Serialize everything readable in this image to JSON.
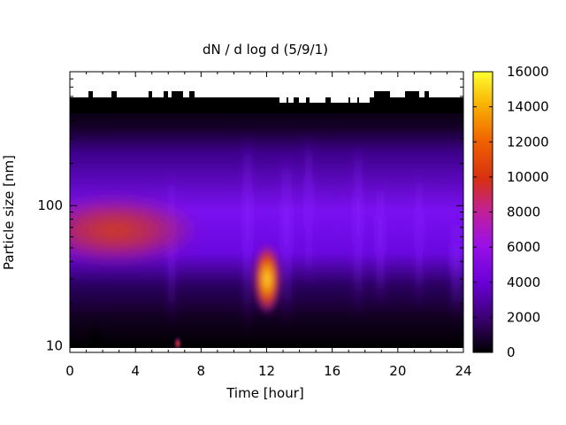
{
  "chart_data": {
    "type": "heatmap",
    "title": "dN / d log d (5/9/1)",
    "xlabel": "Time [hour]",
    "ylabel": "Particle size [nm]",
    "xlim": [
      0,
      24
    ],
    "x_ticks": [
      "0",
      "4",
      "8",
      "12",
      "16",
      "20",
      "24"
    ],
    "y_scale": "log",
    "ylim": [
      9,
      900
    ],
    "y_ticks": [
      "10",
      "100"
    ],
    "colorbar": {
      "min": 0,
      "max": 16000,
      "ticks": [
        "0",
        "2000",
        "4000",
        "6000",
        "8000",
        "10000",
        "12000",
        "14000",
        "16000"
      ],
      "palette": "black-purple-red-orange-yellow"
    },
    "features": [
      {
        "description": "broad accumulation-mode band",
        "time_start_h": 0,
        "time_end_h": 6.5,
        "size_nm": 70,
        "value": 9000
      },
      {
        "description": "particle burst",
        "time_h": 12.2,
        "size_nm": 30,
        "peak_value": 14000
      },
      {
        "description": "small spike at small sizes",
        "time_h": 6.5,
        "size_nm": 10,
        "value": 8000
      }
    ]
  }
}
